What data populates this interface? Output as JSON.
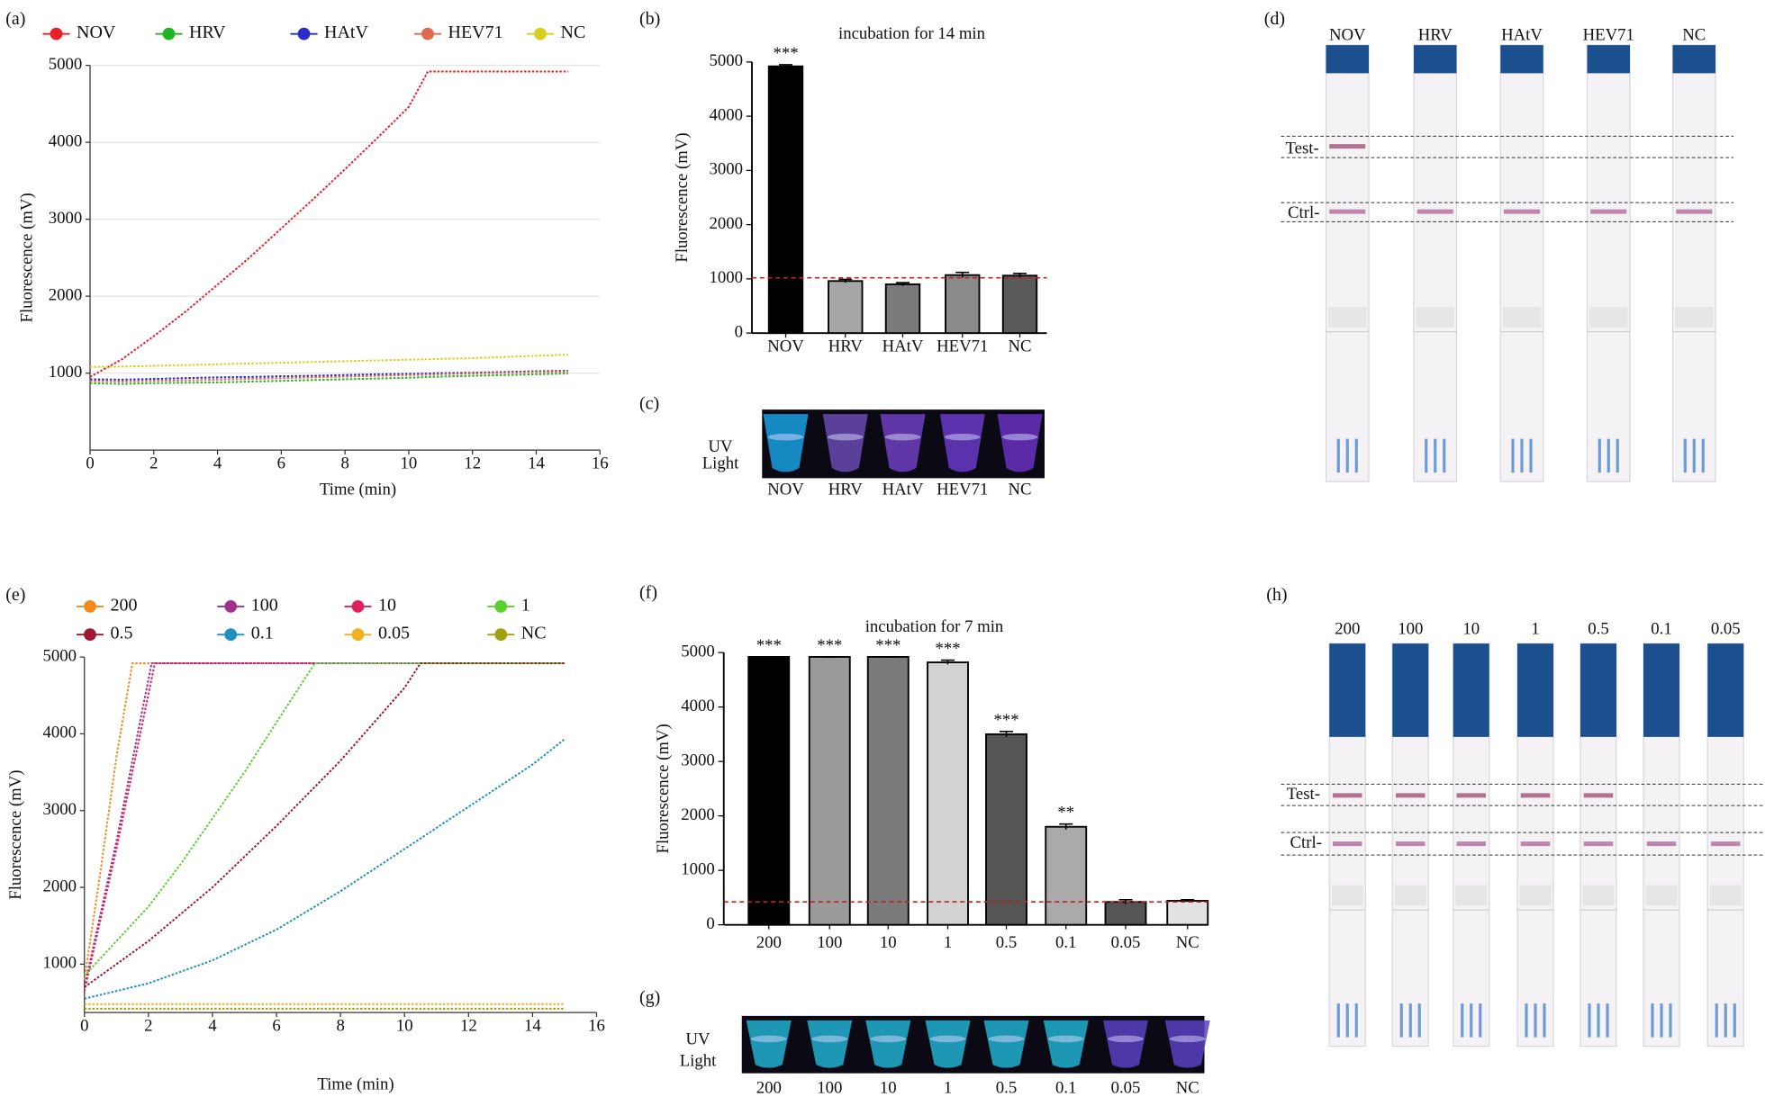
{
  "chart_data": [
    {
      "type": "line",
      "panel": "(a)",
      "xlabel": "Time (min)",
      "ylabel": "Fluorescence (mV)",
      "x": [
        0,
        1,
        2,
        3,
        4,
        5,
        6,
        7,
        8,
        9,
        10,
        10.6,
        11,
        12,
        13,
        14,
        15
      ],
      "series": [
        {
          "name": "NOV",
          "color": "#e8202a",
          "values": [
            950,
            1180,
            1480,
            1800,
            2150,
            2500,
            2880,
            3260,
            3650,
            4050,
            4460,
            4920,
            4920,
            4920,
            4920,
            4920,
            4920
          ]
        },
        {
          "name": "HRV",
          "color": "#22b522",
          "values": [
            870,
            860,
            870,
            875,
            880,
            890,
            900,
            910,
            920,
            930,
            940,
            950,
            955,
            965,
            975,
            985,
            995
          ]
        },
        {
          "name": "HAtV",
          "color": "#2a2ad0",
          "values": [
            920,
            915,
            925,
            935,
            945,
            950,
            960,
            965,
            975,
            985,
            990,
            995,
            1000,
            1005,
            1015,
            1025,
            1030
          ]
        },
        {
          "name": "HEV71",
          "color": "#e06a50",
          "values": [
            900,
            890,
            900,
            905,
            915,
            925,
            935,
            945,
            955,
            965,
            975,
            980,
            985,
            995,
            1005,
            1015,
            1020
          ]
        },
        {
          "name": "NC",
          "color": "#d8d020",
          "values": [
            1080,
            1085,
            1095,
            1105,
            1115,
            1125,
            1135,
            1145,
            1155,
            1165,
            1175,
            1180,
            1185,
            1195,
            1210,
            1225,
            1240
          ]
        }
      ],
      "xlim": [
        0,
        16
      ],
      "xticks": [
        0,
        2,
        4,
        6,
        8,
        10,
        12,
        14,
        16
      ],
      "ylim": [
        0,
        5000
      ],
      "yticks": [
        1000,
        2000,
        3000,
        4000,
        5000
      ],
      "grid": true
    },
    {
      "type": "bar",
      "panel": "(b)",
      "title": "incubation for 14 min",
      "ylabel": "Fluorescence (mV)",
      "categories": [
        "NOV",
        "HRV",
        "HAtV",
        "HEV71",
        "NC"
      ],
      "values": [
        4920,
        960,
        900,
        1070,
        1060
      ],
      "errors": [
        30,
        30,
        30,
        50,
        40
      ],
      "colors": [
        "#000000",
        "#a6a6a6",
        "#7a7a7a",
        "#8a8a8a",
        "#5a5a5a"
      ],
      "annotations": [
        "***",
        null,
        null,
        null,
        null
      ],
      "threshold": 1020,
      "threshold_color": "#c0231e",
      "ylim": [
        0,
        5000
      ],
      "yticks": [
        0,
        1000,
        2000,
        3000,
        4000,
        5000
      ]
    },
    {
      "type": "line",
      "panel": "(e)",
      "xlabel": "Time (min)",
      "ylabel": "Fluorescence (mV)",
      "series": [
        {
          "name": "200",
          "color": "#f28a1e",
          "x": [
            0,
            0.5,
            1,
            1.5,
            15
          ],
          "values": [
            800,
            2200,
            3700,
            4920,
            4920
          ]
        },
        {
          "name": "100",
          "color": "#a0308a",
          "x": [
            0,
            1,
            2.1,
            15
          ],
          "values": [
            700,
            2600,
            4920,
            4920
          ]
        },
        {
          "name": "10",
          "color": "#e0205a",
          "x": [
            0,
            1,
            2.2,
            15
          ],
          "values": [
            650,
            2500,
            4920,
            4920
          ]
        },
        {
          "name": "1",
          "color": "#5ad030",
          "x": [
            0,
            1,
            2,
            3,
            4,
            5,
            6,
            7.2,
            15
          ],
          "values": [
            850,
            1300,
            1750,
            2300,
            2900,
            3500,
            4150,
            4920,
            4920
          ]
        },
        {
          "name": "0.5",
          "color": "#a01830",
          "x": [
            0,
            2,
            4,
            6,
            8,
            10,
            10.5,
            15
          ],
          "values": [
            700,
            1300,
            2000,
            2800,
            3650,
            4600,
            4920,
            4920
          ]
        },
        {
          "name": "0.1",
          "color": "#2090c0",
          "x": [
            0,
            2,
            4,
            6,
            8,
            10,
            12,
            14,
            15
          ],
          "values": [
            550,
            750,
            1050,
            1450,
            1950,
            2500,
            3050,
            3600,
            3930
          ]
        },
        {
          "name": "0.05",
          "color": "#f0b020",
          "x": [
            0,
            15
          ],
          "values": [
            480,
            480
          ]
        },
        {
          "name": "NC",
          "color": "#a0a010",
          "x": [
            0,
            15
          ],
          "values": [
            420,
            420
          ]
        }
      ],
      "xlim": [
        0,
        16
      ],
      "xticks": [
        0,
        2,
        4,
        6,
        8,
        10,
        12,
        14,
        16
      ],
      "ylim": [
        370,
        5000
      ],
      "yticks": [
        1000,
        2000,
        3000,
        4000,
        5000
      ],
      "grid": false
    },
    {
      "type": "bar",
      "panel": "(f)",
      "title": "incubation for 7 min",
      "ylabel": "Fluorescence (mV)",
      "categories": [
        "200",
        "100",
        "10",
        "1",
        "0.5",
        "0.1",
        "0.05",
        "NC"
      ],
      "values": [
        4920,
        4920,
        4920,
        4820,
        3500,
        1800,
        420,
        440
      ],
      "errors": [
        0,
        0,
        0,
        40,
        50,
        50,
        40,
        20
      ],
      "colors": [
        "#000000",
        "#9a9a9a",
        "#7a7a7a",
        "#d2d2d2",
        "#555555",
        "#aaaaaa",
        "#555555",
        "#e2e2e2"
      ],
      "annotations": [
        "***",
        "***",
        "***",
        "***",
        "***",
        "**",
        null,
        null
      ],
      "threshold": 420,
      "threshold_color": "#c0231e",
      "ylim": [
        0,
        5000
      ],
      "yticks": [
        0,
        1000,
        2000,
        3000,
        4000,
        5000
      ]
    }
  ],
  "photos": [
    {
      "panel": "(c)",
      "label": [
        "UV",
        "Light"
      ],
      "lanes": [
        "NOV",
        "HRV",
        "HAtV",
        "HEV71",
        "NC"
      ]
    },
    {
      "panel": "(g)",
      "label": [
        "UV",
        "Light"
      ],
      "lanes": [
        "200",
        "100",
        "10",
        "1",
        "0.5",
        "0.1",
        "0.05",
        "NC"
      ]
    }
  ],
  "strips": [
    {
      "panel": "(d)",
      "lanes": [
        "NOV",
        "HRV",
        "HAtV",
        "HEV71",
        "NC"
      ],
      "test": "Test-",
      "ctrl": "Ctrl-",
      "test_band": [
        true,
        false,
        false,
        false,
        false
      ]
    },
    {
      "panel": "(h)",
      "lanes": [
        "200",
        "100",
        "10",
        "1",
        "0.5",
        "0.1",
        "0.05"
      ],
      "test": "Test-",
      "ctrl": "Ctrl-",
      "test_band": [
        true,
        true,
        true,
        true,
        true,
        false,
        false
      ]
    }
  ]
}
